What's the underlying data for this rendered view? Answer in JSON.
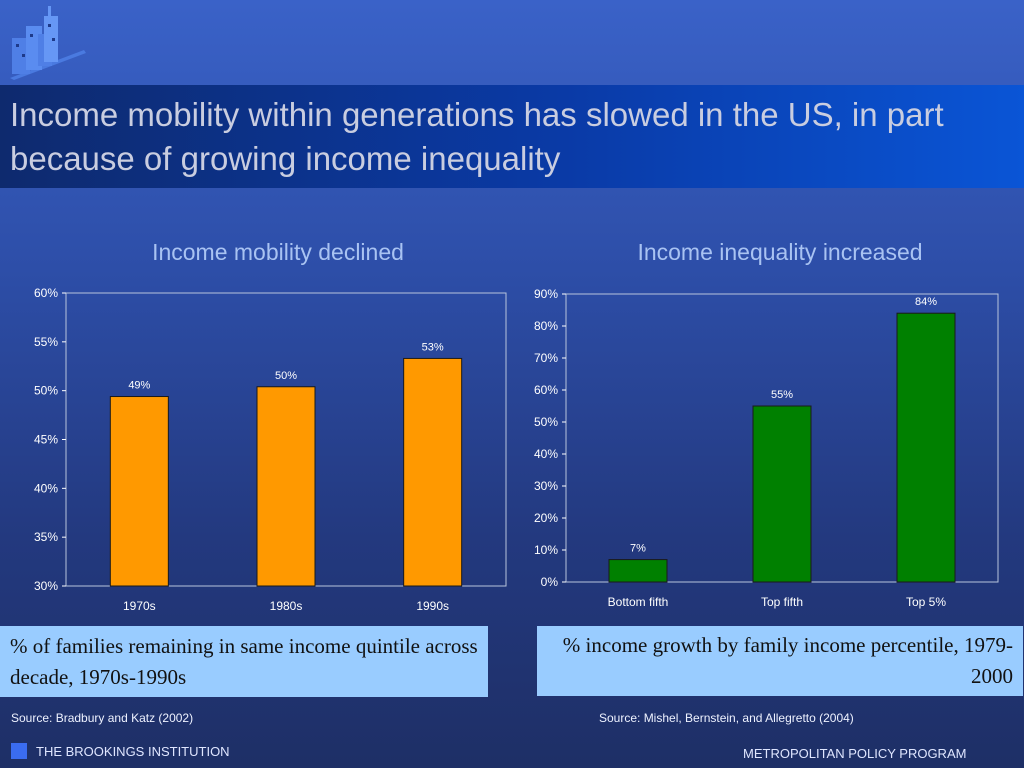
{
  "slide": {
    "title": "Income mobility within generations has slowed in the US, in part because of growing income inequality"
  },
  "colors": {
    "mobility_bar": "#ff9900",
    "inequality_bar": "#008000",
    "caption_bg": "#99ccff"
  },
  "chart_data": [
    {
      "type": "bar",
      "title": "Income mobility declined",
      "categories": [
        "1970s",
        "1980s",
        "1990s"
      ],
      "values": [
        49.4,
        50.4,
        53.3
      ],
      "data_labels": [
        "49%",
        "50%",
        "53%"
      ],
      "ylim": [
        30,
        60
      ],
      "yticks": [
        30,
        35,
        40,
        45,
        50,
        55,
        60
      ],
      "ytick_labels": [
        "30%",
        "35%",
        "40%",
        "45%",
        "50%",
        "55%",
        "60%"
      ],
      "xlabel": "",
      "ylabel": "",
      "grid": false,
      "legend": "none"
    },
    {
      "type": "bar",
      "title": "Income inequality increased",
      "categories": [
        "Bottom fifth",
        "Top fifth",
        "Top 5%"
      ],
      "values": [
        7,
        55,
        84
      ],
      "data_labels": [
        "7%",
        "55%",
        "84%"
      ],
      "ylim": [
        0,
        90
      ],
      "yticks": [
        0,
        10,
        20,
        30,
        40,
        50,
        60,
        70,
        80,
        90
      ],
      "ytick_labels": [
        "0%",
        "10%",
        "20%",
        "30%",
        "40%",
        "50%",
        "60%",
        "70%",
        "80%",
        "90%"
      ],
      "xlabel": "",
      "ylabel": "",
      "grid": false,
      "legend": "none"
    }
  ],
  "captions": {
    "left": "% of  families remaining in same income quintile across decade, 1970s-1990s",
    "right": "% income growth by family income percentile, 1979-2000"
  },
  "sources": {
    "left": "Source: Bradbury and Katz (2002)",
    "right": "Source: Mishel, Bernstein, and Allegretto (2004)"
  },
  "footer": {
    "left": "THE BROOKINGS INSTITUTION",
    "right": "METROPOLITAN POLICY PROGRAM"
  }
}
